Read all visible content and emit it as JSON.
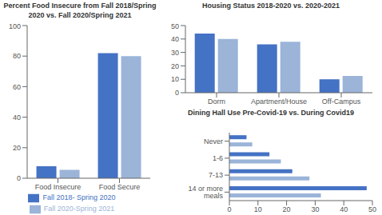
{
  "chart_data": [
    {
      "type": "bar",
      "title": "Percent Food Insecure from Fall 2018/Spring 2020 vs. Fall 2020/Spring 2021",
      "categories": [
        "Food Insecure",
        "Food Secure"
      ],
      "series": [
        {
          "name": "Fall 2018- Spring 2020",
          "color": "#4472c4",
          "values": [
            7.8,
            82.0
          ]
        },
        {
          "name": "Fall 2020-Spring 2021",
          "color": "#9bb4d8",
          "values": [
            5.5,
            80.0
          ]
        }
      ],
      "ylim": [
        0,
        100
      ],
      "yticks": [
        0,
        20,
        40,
        60,
        80,
        100
      ],
      "grid": false,
      "legend": "bottom"
    },
    {
      "type": "bar",
      "title": "Housing Status 2018-2020 vs. 2020-2021",
      "categories": [
        "Dorm",
        "Apartment/House",
        "Off-Campus"
      ],
      "series": [
        {
          "color": "#4472c4",
          "values": [
            44.0,
            36.0,
            10.0
          ]
        },
        {
          "color": "#9bb4d8",
          "values": [
            40.0,
            38.0,
            12.5
          ]
        }
      ],
      "ylim": [
        0,
        50
      ],
      "yticks": [
        0,
        10,
        20,
        30,
        40,
        50
      ],
      "grid": false
    },
    {
      "type": "bar",
      "orientation": "horizontal",
      "title": "Dining Hall Use Pre-Covid-19 vs. During Covid19",
      "categories": [
        "14 or more meals",
        "7-13",
        "1-6",
        "Never"
      ],
      "series": [
        {
          "color": "#4472c4",
          "values": [
            48.0,
            22.0,
            14.0,
            6.0
          ]
        },
        {
          "color": "#9bb4d8",
          "values": [
            32.0,
            28.0,
            18.0,
            8.0
          ]
        }
      ],
      "xlim": [
        0,
        50
      ],
      "xticks": [
        0,
        10,
        20,
        30,
        40,
        50
      ],
      "grid": false
    }
  ]
}
